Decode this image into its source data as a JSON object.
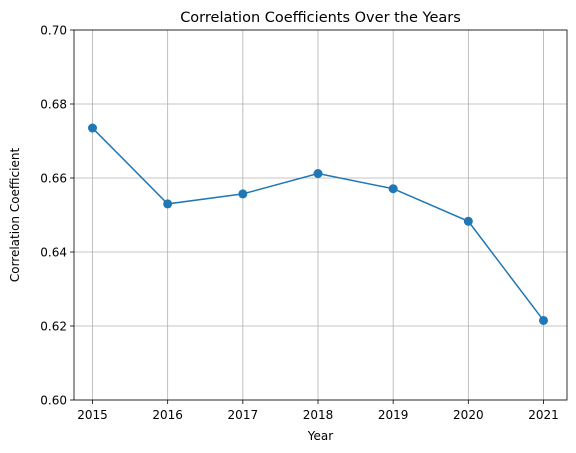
{
  "chart_data": {
    "type": "line",
    "title": "Correlation Coefficients Over the Years",
    "xlabel": "Year",
    "ylabel": "Correlation Coefficient",
    "x": [
      "2015",
      "2016",
      "2017",
      "2018",
      "2019",
      "2020",
      "2021"
    ],
    "y_ticks": [
      "0.60",
      "0.62",
      "0.64",
      "0.66",
      "0.68",
      "0.70"
    ],
    "ylim": [
      0.6,
      0.7
    ],
    "grid": true,
    "legend": "none",
    "series": [
      {
        "values": [
          0.6735,
          0.653,
          0.6557,
          0.6612,
          0.6571,
          0.6483,
          0.6215
        ],
        "color": "#1f77b4",
        "marker": "circle"
      }
    ]
  }
}
